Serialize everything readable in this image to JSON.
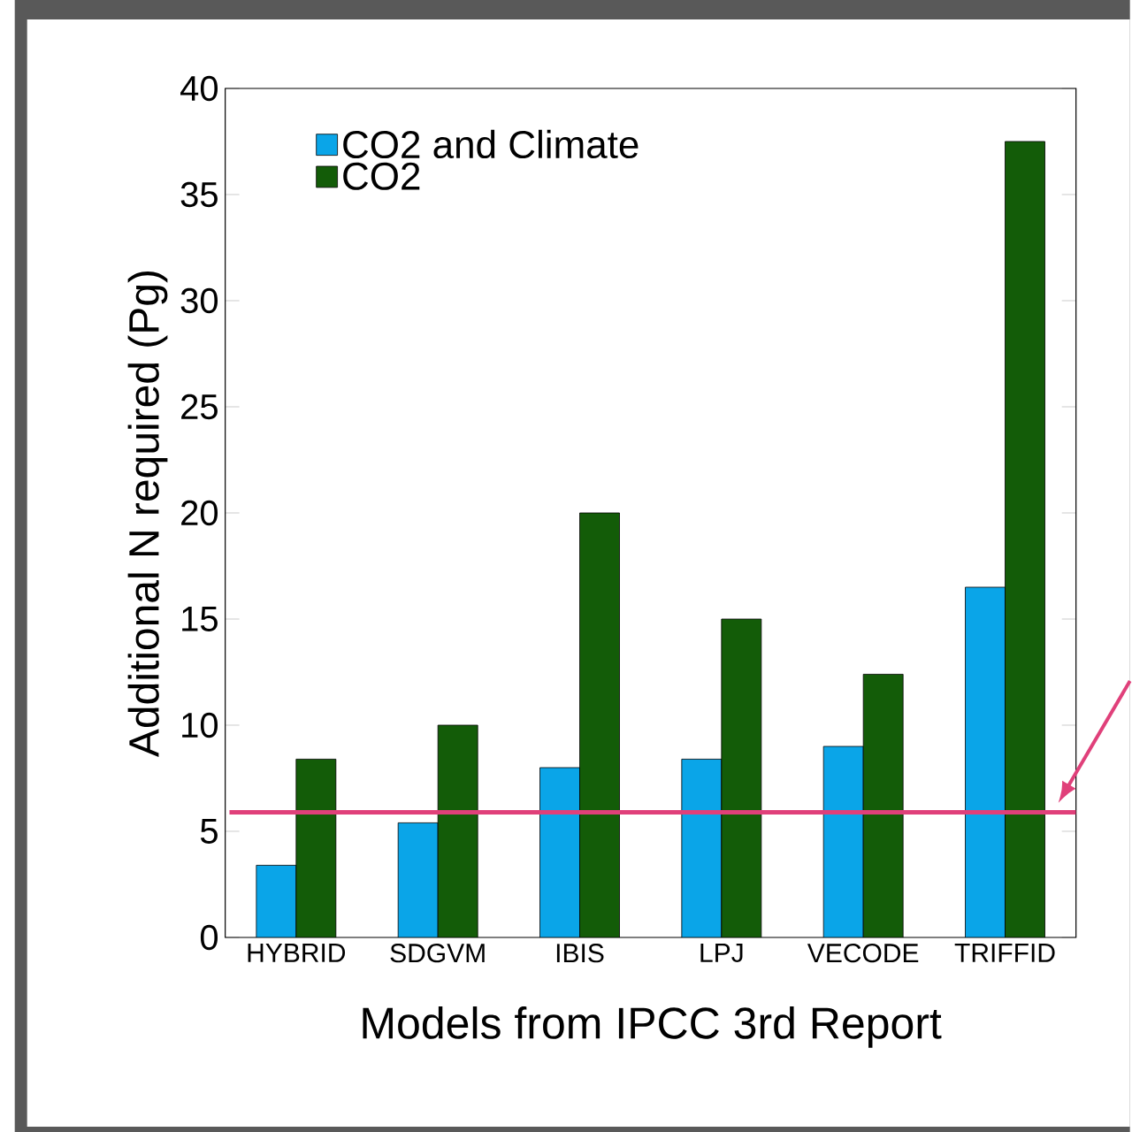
{
  "chart_data": {
    "type": "bar",
    "xlabel": "Models from IPCC 3rd Report",
    "ylabel": "Additional N required (Pg)",
    "categories": [
      "HYBRID",
      "SDGVM",
      "IBIS",
      "LPJ",
      "VECODE",
      "TRIFFID"
    ],
    "series": [
      {
        "name": "CO2 and Climate",
        "color": "#0aa5e8",
        "values": [
          3.4,
          5.4,
          8.0,
          8.4,
          9.0,
          16.5
        ]
      },
      {
        "name": "CO2",
        "color": "#135c08",
        "values": [
          8.4,
          10.0,
          20.0,
          15.0,
          12.4,
          37.5
        ]
      }
    ],
    "ylim": [
      0,
      40
    ],
    "yticks": [
      0,
      5,
      10,
      15,
      20,
      25,
      30,
      35,
      40
    ],
    "ref_lines": [
      {
        "axis": "y",
        "value": 5.9,
        "color": "#e0407a"
      }
    ],
    "grid": false,
    "legend": "top left"
  }
}
